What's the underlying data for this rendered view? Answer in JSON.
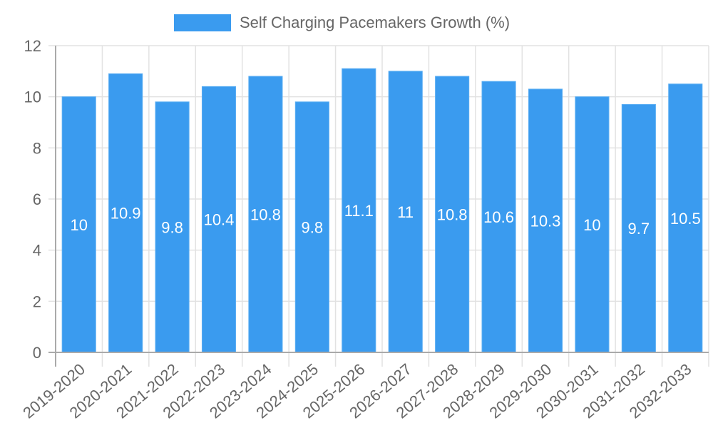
{
  "chart_data": {
    "type": "bar",
    "title": "",
    "xlabel": "",
    "ylabel": "",
    "ylim": [
      0,
      12
    ],
    "yticks": [
      0,
      2,
      4,
      6,
      8,
      10,
      12
    ],
    "grid": true,
    "legend_position": "top",
    "categories": [
      "2019-2020",
      "2020-2021",
      "2021-2022",
      "2022-2023",
      "2023-2024",
      "2024-2025",
      "2025-2026",
      "2026-2027",
      "2027-2028",
      "2028-2029",
      "2029-2030",
      "2030-2031",
      "2031-2032",
      "2032-2033"
    ],
    "series": [
      {
        "name": "Self Charging Pacemakers Growth (%)",
        "values": [
          10,
          10.9,
          9.8,
          10.4,
          10.8,
          9.8,
          11.1,
          11,
          10.8,
          10.6,
          10.3,
          10,
          9.7,
          10.5
        ],
        "color": "#3a9bef"
      }
    ],
    "data_labels": [
      "10",
      "10.9",
      "9.8",
      "10.4",
      "10.8",
      "9.8",
      "11.1",
      "11",
      "10.8",
      "10.6",
      "10.3",
      "10",
      "9.7",
      "10.5"
    ]
  },
  "legend": {
    "label": "Self Charging Pacemakers Growth (%)",
    "color": "#3a9bef"
  },
  "colors": {
    "bar": "#3a9bef",
    "grid": "#e2e2e2",
    "axis": "#aaaaaa",
    "tick_text": "#666666",
    "data_label": "#ffffff"
  }
}
